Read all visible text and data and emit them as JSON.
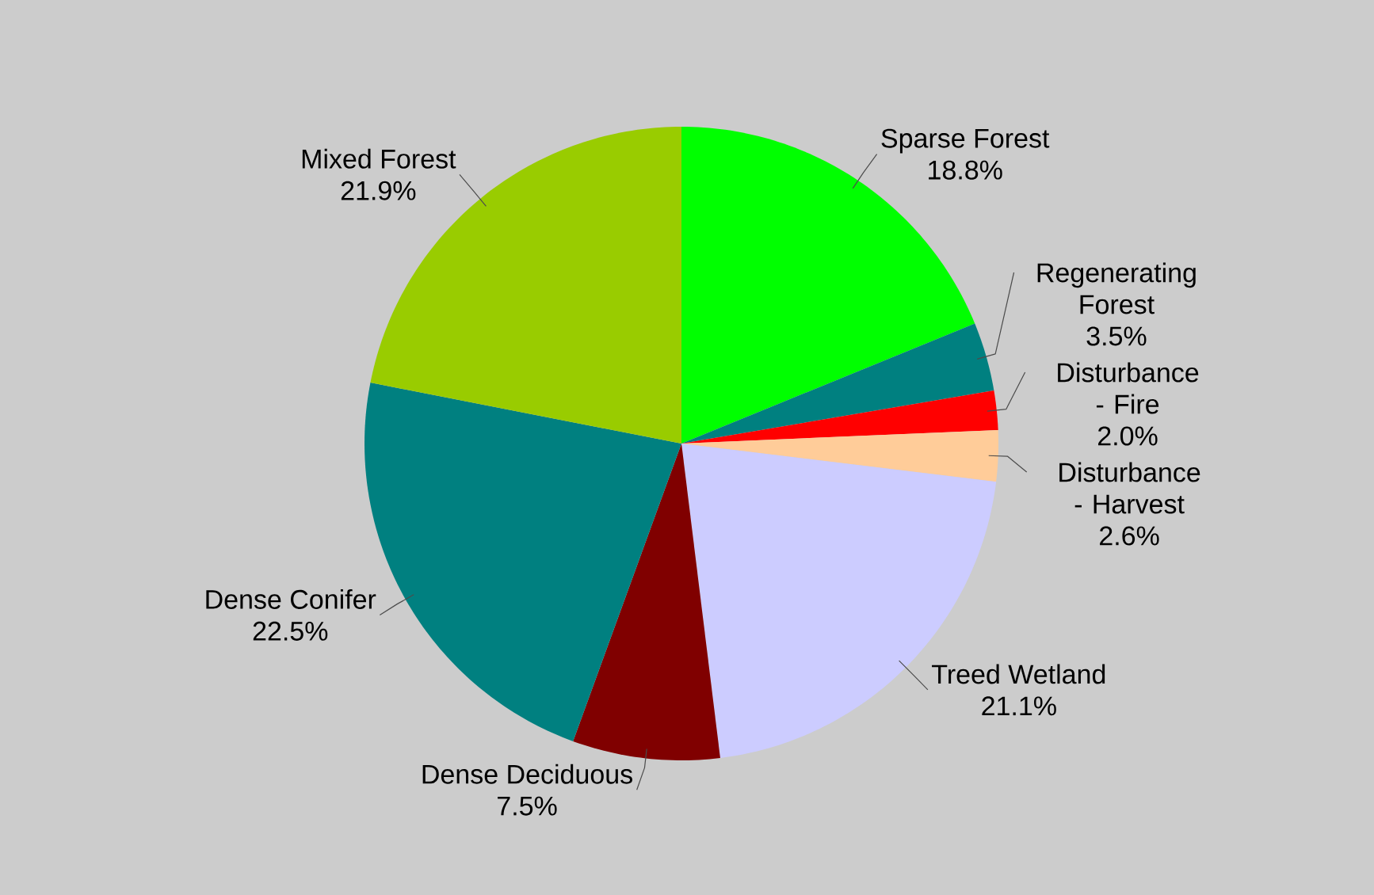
{
  "chart_data": {
    "type": "pie",
    "categories": [
      "Sparse Forest",
      "Regenerating Forest",
      "Disturbance - Fire",
      "Disturbance - Harvest",
      "Treed Wetland",
      "Dense Deciduous",
      "Dense Conifer",
      "Mixed Forest"
    ],
    "values": [
      18.8,
      3.5,
      2.0,
      2.6,
      21.1,
      7.5,
      22.5,
      21.9
    ],
    "value_labels": [
      "18.8%",
      "3.5%",
      "2.0%",
      "2.6%",
      "21.1%",
      "7.5%",
      "22.5%",
      "21.9%"
    ],
    "colors": [
      "#00ff00",
      "#008080",
      "#ff0000",
      "#ffcc99",
      "#ccccff",
      "#800000",
      "#008080",
      "#99cc00"
    ]
  }
}
